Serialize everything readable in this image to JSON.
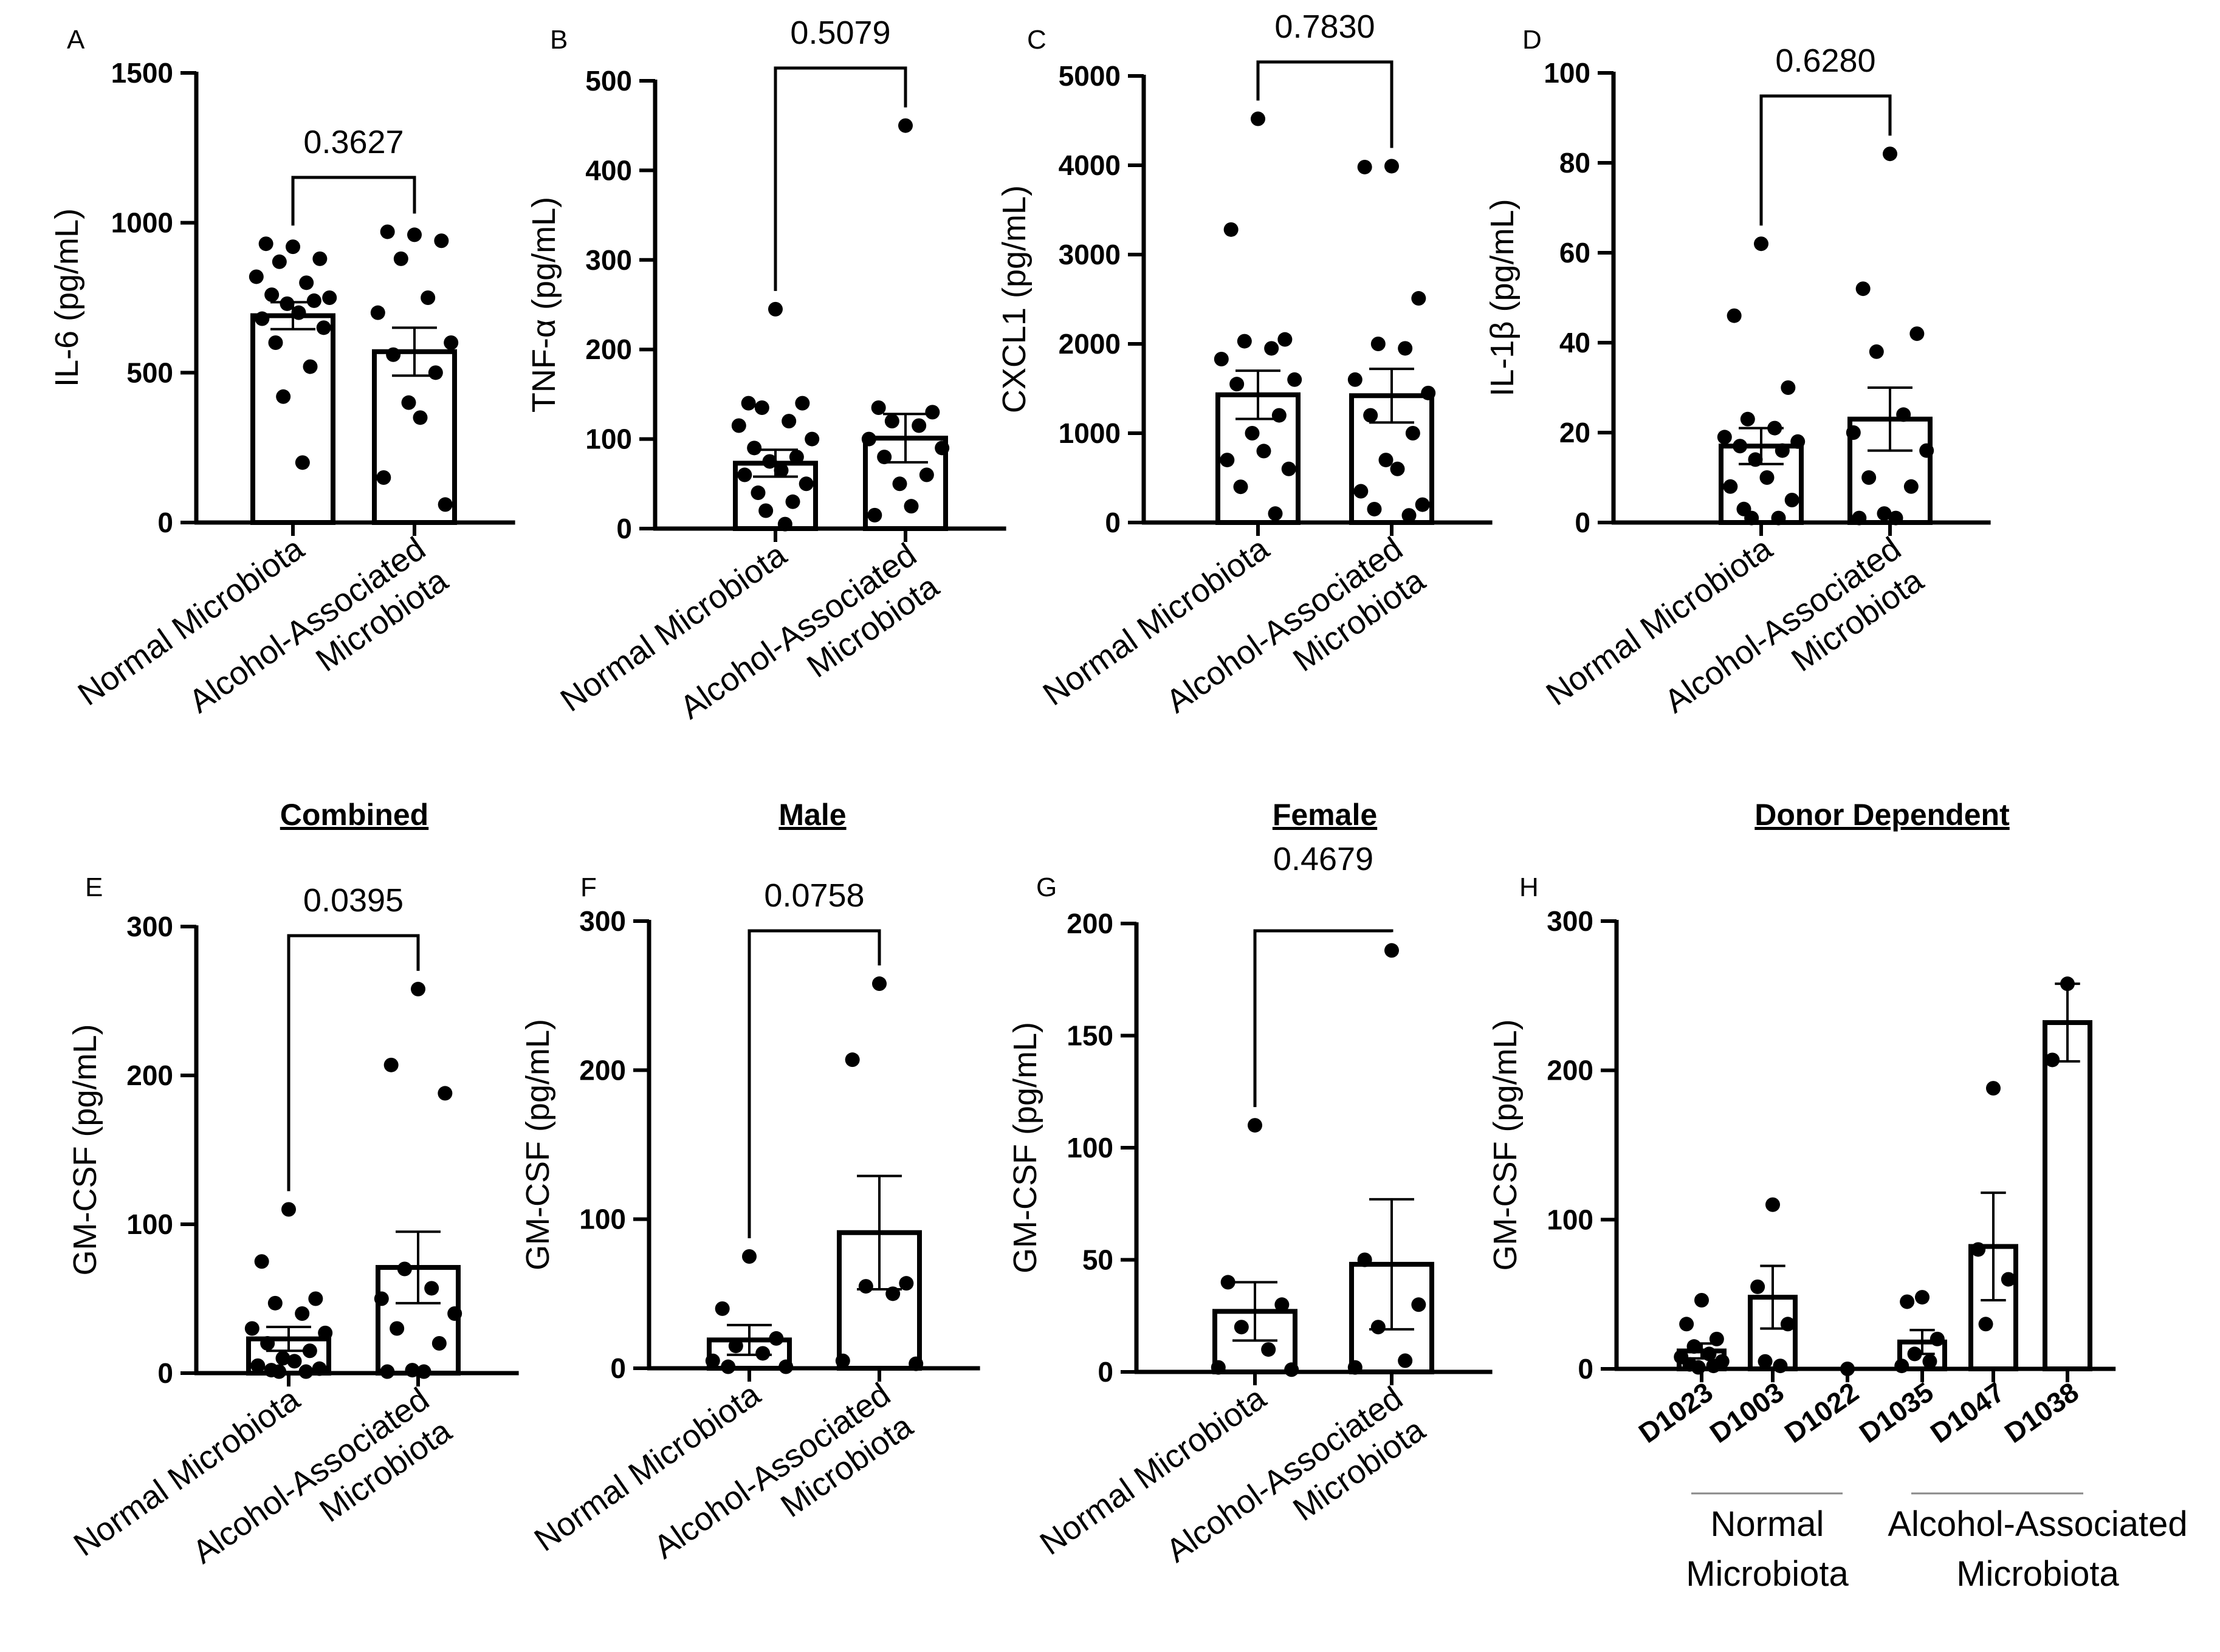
{
  "chart_data": [
    {
      "id": "A",
      "type": "bar",
      "heading": "",
      "ylabel": "IL-6 (pg/mL)",
      "ylim": [
        0,
        1500
      ],
      "yticks": [
        0,
        500,
        1000,
        1500
      ],
      "categories": [
        "Normal Microbiota",
        "Alcohol-Associated\nMicrobiota"
      ],
      "means": [
        690,
        570
      ],
      "sem": [
        45,
        80
      ],
      "points": [
        [
          920,
          930,
          880,
          870,
          800,
          820,
          750,
          760,
          740,
          730,
          700,
          680,
          650,
          600,
          520,
          420,
          200
        ],
        [
          960,
          970,
          940,
          880,
          750,
          700,
          600,
          560,
          500,
          400,
          350,
          150,
          60
        ]
      ],
      "comparison": "0.3627"
    },
    {
      "id": "B",
      "type": "bar",
      "heading": "",
      "ylabel": "TNF-α (pg/mL)",
      "ylim": [
        0,
        500
      ],
      "yticks": [
        0,
        100,
        200,
        300,
        400,
        500
      ],
      "categories": [
        "Normal Microbiota",
        "Alcohol-Associated\nMicrobiota"
      ],
      "means": [
        73,
        101
      ],
      "sem": [
        15,
        27
      ],
      "points": [
        [
          245,
          140,
          140,
          135,
          120,
          115,
          100,
          90,
          80,
          75,
          65,
          60,
          50,
          40,
          30,
          20,
          5
        ],
        [
          450,
          135,
          130,
          120,
          115,
          100,
          90,
          80,
          60,
          50,
          25,
          15
        ]
      ],
      "comparison": "0.5079"
    },
    {
      "id": "C",
      "type": "bar",
      "heading": "",
      "ylabel": "CXCL1 (pg/mL)",
      "ylim": [
        0,
        5000
      ],
      "yticks": [
        0,
        1000,
        2000,
        3000,
        4000,
        5000
      ],
      "categories": [
        "Normal Microbiota",
        "Alcohol-Associated\nMicrobiota"
      ],
      "means": [
        1430,
        1420
      ],
      "sem": [
        270,
        300
      ],
      "points": [
        [
          4520,
          3280,
          2050,
          2030,
          1950,
          1830,
          1600,
          1550,
          1200,
          1000,
          800,
          700,
          600,
          400,
          100
        ],
        [
          3990,
          3980,
          2510,
          2000,
          1950,
          1600,
          1450,
          1200,
          1000,
          700,
          600,
          350,
          200,
          150,
          80
        ]
      ],
      "comparison": "0.7830"
    },
    {
      "id": "D",
      "type": "bar",
      "heading": "",
      "ylabel": "IL-1β (pg/mL)",
      "ylim": [
        0,
        100
      ],
      "yticks": [
        0,
        20,
        40,
        60,
        80,
        100
      ],
      "categories": [
        "Normal Microbiota",
        "Alcohol-Associated\nMicrobiota"
      ],
      "means": [
        17,
        23
      ],
      "sem": [
        4,
        7
      ],
      "points": [
        [
          62,
          46,
          30,
          23,
          21,
          19,
          18,
          17,
          16,
          14,
          10,
          8,
          5,
          3,
          1,
          1
        ],
        [
          82,
          52,
          42,
          38,
          24,
          20,
          16,
          10,
          8,
          2,
          1,
          1
        ]
      ],
      "comparison": "0.6280"
    },
    {
      "id": "E",
      "type": "bar",
      "heading": "Combined",
      "ylabel": "GM-CSF (pg/mL)",
      "ylim": [
        0,
        300
      ],
      "yticks": [
        0,
        100,
        200,
        300
      ],
      "categories": [
        "Normal Microbiota",
        "Alcohol-Associated\nMicrobiota"
      ],
      "means": [
        23,
        71
      ],
      "sem": [
        8,
        24
      ],
      "points": [
        [
          110,
          75,
          50,
          47,
          40,
          30,
          27,
          20,
          15,
          10,
          8,
          5,
          3,
          2,
          1,
          1
        ],
        [
          258,
          207,
          188,
          70,
          57,
          50,
          40,
          30,
          20,
          2,
          1,
          1
        ]
      ],
      "comparison": "0.0395"
    },
    {
      "id": "F",
      "type": "bar",
      "heading": "Male",
      "ylabel": "GM-CSF (pg/mL)",
      "ylim": [
        0,
        300
      ],
      "yticks": [
        0,
        100,
        200,
        300
      ],
      "categories": [
        "Normal Microbiota",
        "Alcohol-Associated\nMicrobiota"
      ],
      "means": [
        19,
        91
      ],
      "sem": [
        10,
        38
      ],
      "points": [
        [
          75,
          40,
          20,
          15,
          10,
          5,
          1,
          1
        ],
        [
          258,
          207,
          57,
          55,
          50,
          5,
          3
        ]
      ],
      "comparison": "0.0758"
    },
    {
      "id": "G",
      "type": "bar",
      "heading": "Female",
      "ylabel": "GM-CSF (pg/mL)",
      "ylim": [
        0,
        200
      ],
      "yticks": [
        0,
        50,
        100,
        150,
        200
      ],
      "categories": [
        "Normal Microbiota",
        "Alcohol-Associated\nMicrobiota"
      ],
      "means": [
        27,
        48
      ],
      "sem": [
        13,
        29
      ],
      "points": [
        [
          110,
          40,
          30,
          20,
          10,
          2,
          1
        ],
        [
          188,
          50,
          30,
          20,
          5,
          2
        ]
      ],
      "comparison": "0.4679"
    },
    {
      "id": "H",
      "type": "bar",
      "heading": "Donor Dependent",
      "ylabel": "GM-CSF (pg/mL)",
      "ylim": [
        0,
        300
      ],
      "yticks": [
        0,
        100,
        200,
        300
      ],
      "categories": [
        "D1023",
        "D1003",
        "D1022",
        "D1035",
        "D1047",
        "D1038"
      ],
      "groups": [
        {
          "label": "Normal\nMicrobiota",
          "categories": [
            0,
            1,
            2
          ]
        },
        {
          "label": "Alcohol-Associated\nMicrobiota",
          "categories": [
            3,
            4,
            5
          ]
        }
      ],
      "means": [
        12,
        48,
        0,
        18,
        82,
        232
      ],
      "sem": [
        5,
        21,
        0,
        8,
        36,
        26
      ],
      "points": [
        [
          46,
          30,
          20,
          15,
          10,
          8,
          5,
          3,
          2,
          1
        ],
        [
          110,
          55,
          30,
          5,
          2
        ],
        [
          0
        ],
        [
          48,
          45,
          20,
          10,
          5,
          2
        ],
        [
          188,
          80,
          60,
          30
        ],
        [
          258,
          207
        ]
      ],
      "comparison": ""
    }
  ]
}
